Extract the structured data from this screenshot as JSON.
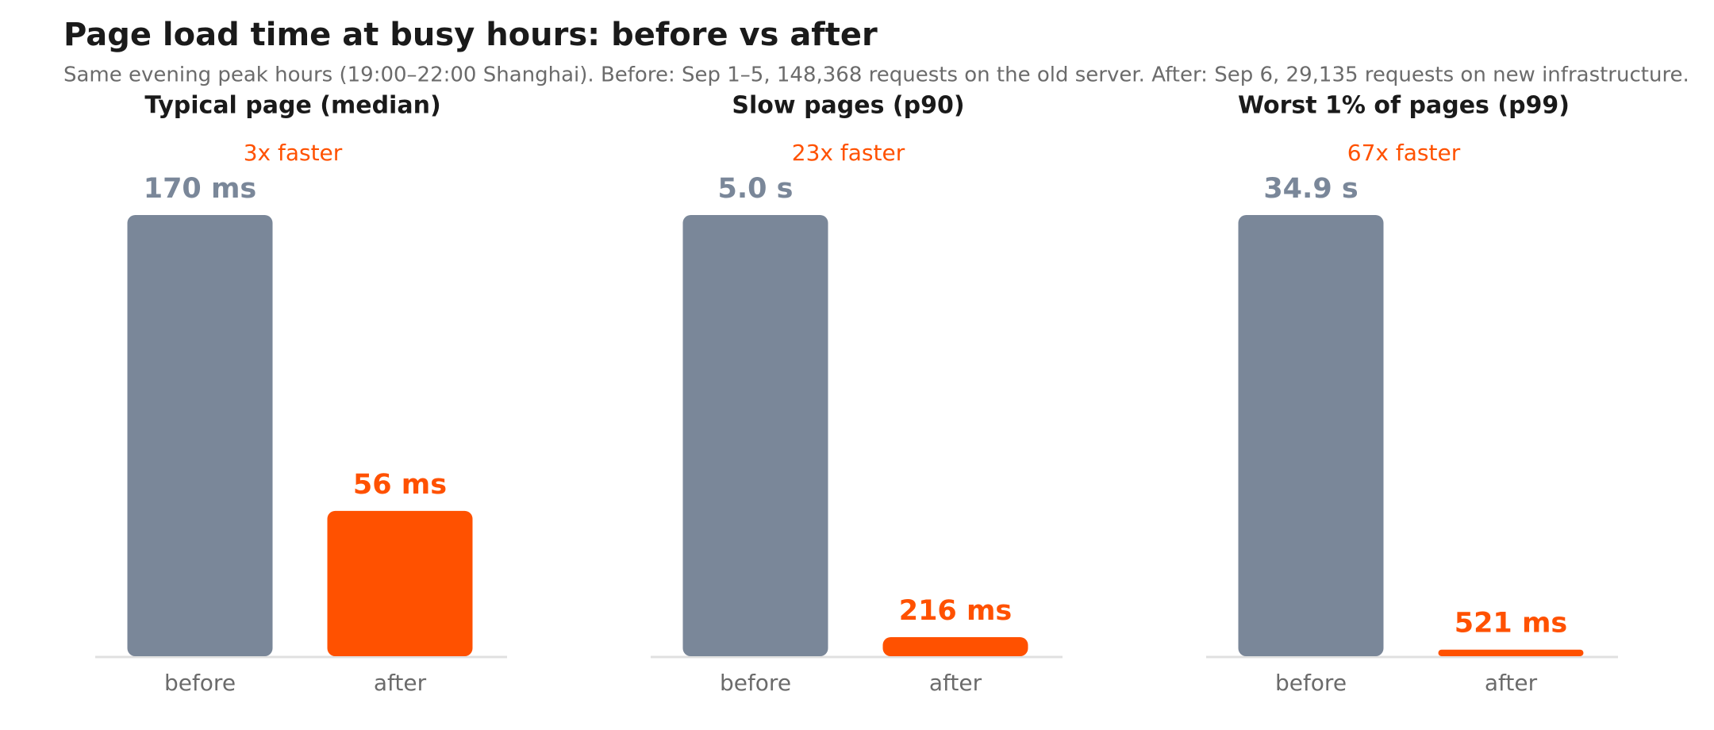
{
  "title": "Page load time at busy hours: before vs after",
  "subtitle": "Same evening peak hours (19:00–22:00 Shanghai). Before: Sep 1–5, 148,368 requests on the old server. After: Sep 6, 29,135 requests on new infrastructure.",
  "chart_data": [
    {
      "type": "bar",
      "title": "Typical page (median)",
      "annotation": "3x faster",
      "categories": [
        "before",
        "after"
      ],
      "values": [
        170,
        56
      ],
      "value_labels": [
        "170 ms",
        "56 ms"
      ],
      "colors": [
        "#7a8799",
        "#ff5100"
      ]
    },
    {
      "type": "bar",
      "title": "Slow pages (p90)",
      "annotation": "23x faster",
      "categories": [
        "before",
        "after"
      ],
      "values": [
        5000,
        216
      ],
      "value_labels": [
        "5.0 s",
        "216 ms"
      ],
      "colors": [
        "#7a8799",
        "#ff5100"
      ]
    },
    {
      "type": "bar",
      "title": "Worst 1% of pages (p99)",
      "annotation": "67x faster",
      "categories": [
        "before",
        "after"
      ],
      "values": [
        34900,
        521
      ],
      "value_labels": [
        "34.9 s",
        "521 ms"
      ],
      "colors": [
        "#7a8799",
        "#ff5100"
      ]
    }
  ]
}
